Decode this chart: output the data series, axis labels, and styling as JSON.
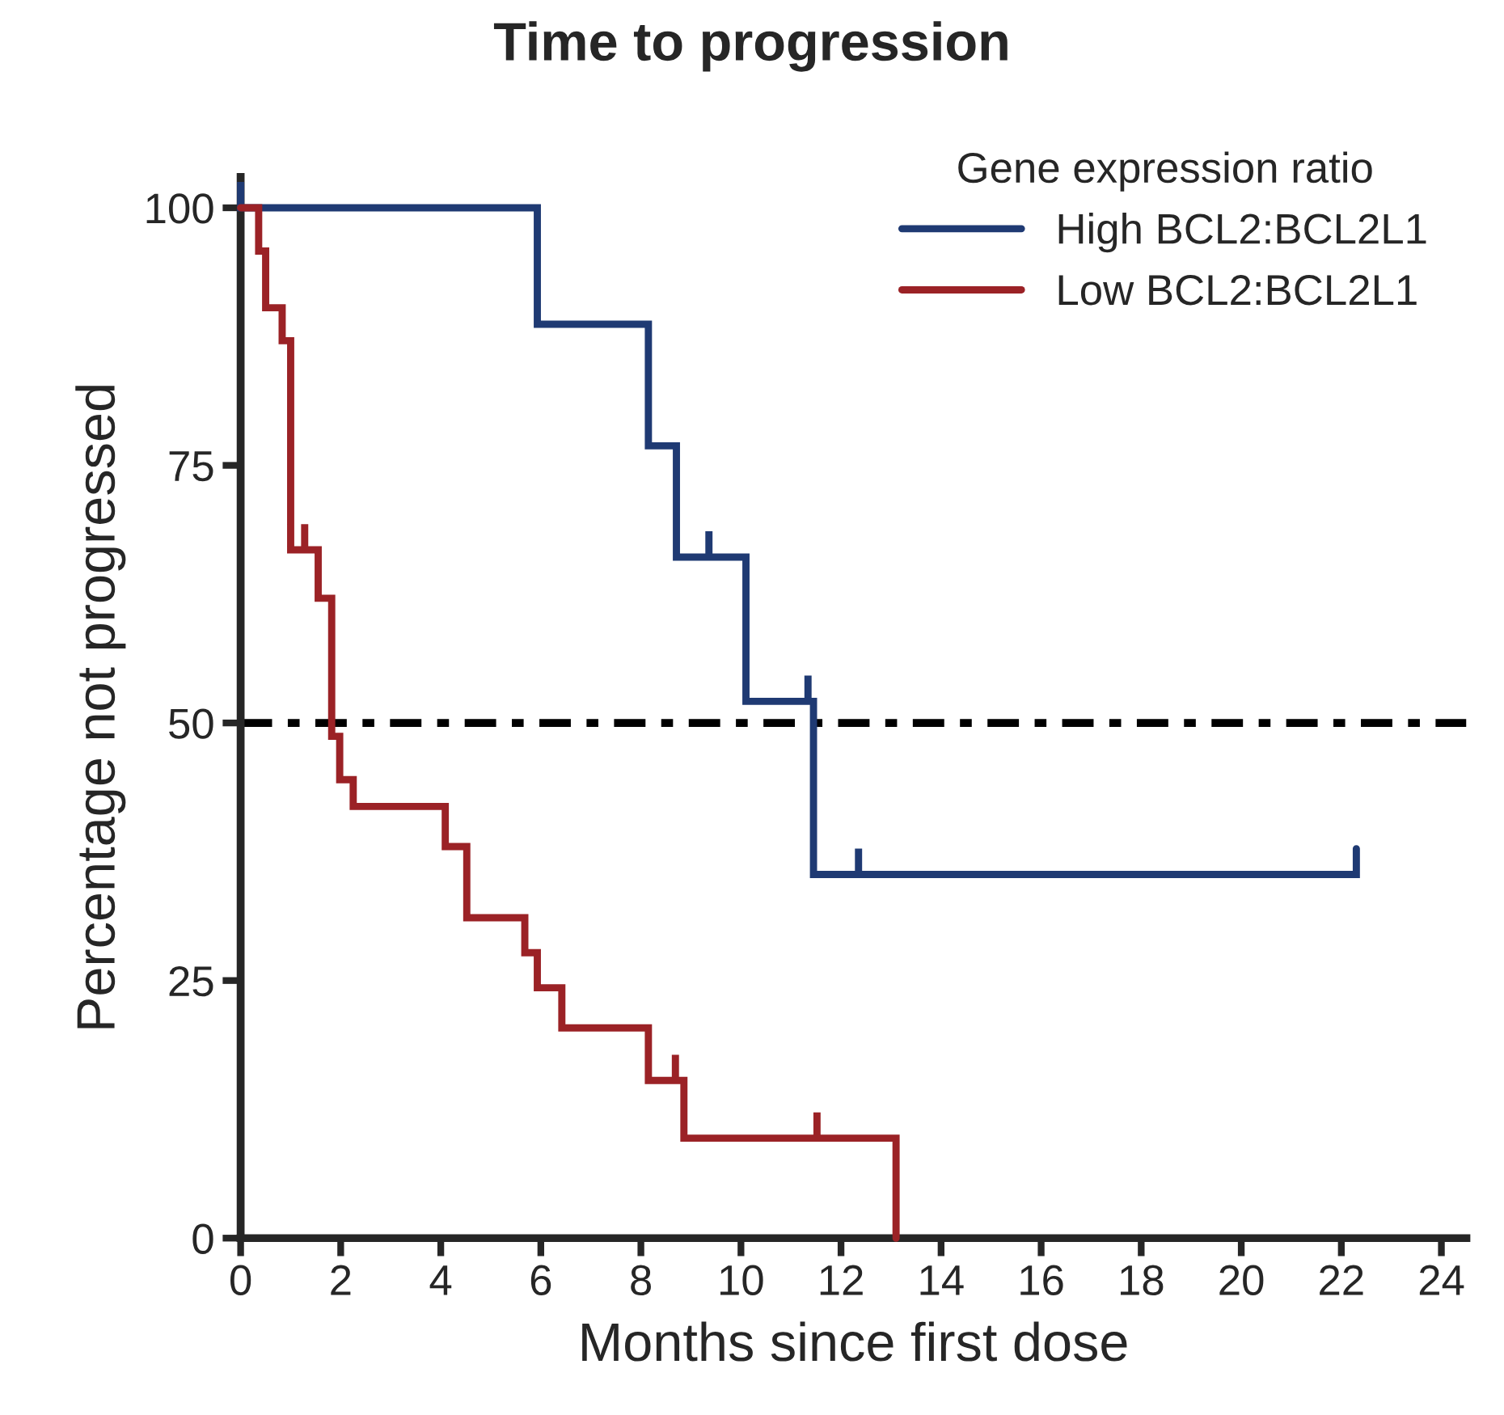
{
  "chart_data": {
    "type": "step",
    "title": "Time to progression",
    "xlabel": "Months since first dose",
    "ylabel": "Percentage not progressed",
    "legend_title": "Gene expression ratio",
    "legend": "top right",
    "grid": false,
    "marker": "none",
    "line_style": "solid",
    "xlim": [
      0,
      24.5
    ],
    "xticks": [
      0,
      2,
      4,
      6,
      8,
      10,
      12,
      14,
      16,
      18,
      20,
      22,
      24
    ],
    "ylim": [
      0,
      103
    ],
    "yticks": [
      0,
      25,
      50,
      75,
      100
    ],
    "series": [
      {
        "name": "High BCL2:BCL2L1",
        "color": "#1f3a73",
        "x": [
          0,
          0,
          0,
          5.93,
          8.15,
          8.71,
          9.36,
          9.36,
          9.36,
          10.1,
          11.34,
          11.34,
          11.34,
          11.45,
          12.35,
          12.35,
          12.35,
          22.3,
          22.3
        ],
        "values": [
          100,
          102.5,
          100,
          88.7,
          76.9,
          66.1,
          66.1,
          68.6,
          66.1,
          52.1,
          52.1,
          54.6,
          52.1,
          35.3,
          35.3,
          37.8,
          35.3,
          35.3,
          37.8
        ]
      },
      {
        "name": "Low BCL2:BCL2L1",
        "color": "#9b2226",
        "x": [
          0,
          0.36,
          0.5,
          0.83,
          1.0,
          1.28,
          1.28,
          1.28,
          1.55,
          1.82,
          1.98,
          2.25,
          4.09,
          4.52,
          5.68,
          5.93,
          6.42,
          8.15,
          8.69,
          8.69,
          8.69,
          8.86,
          11.52,
          11.52,
          11.52,
          13.1,
          13.1
        ],
        "values": [
          100,
          95.8,
          90.3,
          87.1,
          66.8,
          66.8,
          69.3,
          66.8,
          62.1,
          48.7,
          44.5,
          41.9,
          38.0,
          31.1,
          27.7,
          24.3,
          20.4,
          15.3,
          15.3,
          17.8,
          15.3,
          9.7,
          9.7,
          12.2,
          9.7,
          0,
          0
        ]
      }
    ],
    "ref_lines": [
      {
        "axis": "y",
        "value": 50,
        "color": "#000000",
        "line_style": "dashdot"
      }
    ]
  }
}
